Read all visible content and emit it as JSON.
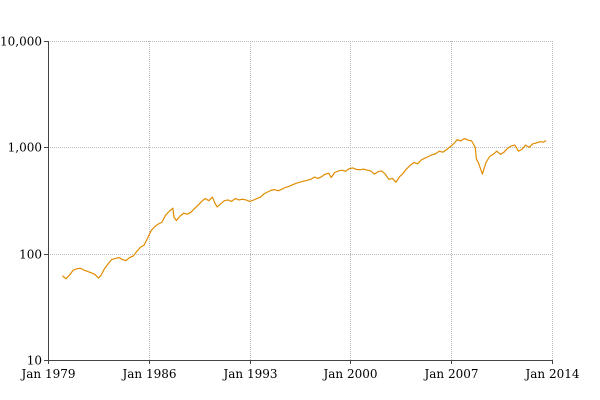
{
  "chart_data": {
    "type": "line",
    "title": "",
    "xlabel": "",
    "ylabel": "",
    "y_scale": "log",
    "ylim": [
      10,
      10000
    ],
    "xlim": [
      "1979-01",
      "2014-01"
    ],
    "grid": true,
    "x_ticks": [
      {
        "date": "1979-01",
        "label": "Jan 1979"
      },
      {
        "date": "1986-01",
        "label": "Jan 1986"
      },
      {
        "date": "1993-01",
        "label": "Jan 1993"
      },
      {
        "date": "2000-01",
        "label": "Jan 2000"
      },
      {
        "date": "2007-01",
        "label": "Jan 2007"
      },
      {
        "date": "2014-01",
        "label": "Jan 2014"
      }
    ],
    "y_ticks": [
      {
        "value": 10,
        "label": "10"
      },
      {
        "value": 100,
        "label": "100"
      },
      {
        "value": 1000,
        "label": "1,000"
      },
      {
        "value": 10000,
        "label": "10,000"
      }
    ],
    "series": [
      {
        "color": "#e08c00",
        "points": [
          [
            "1980-01",
            62
          ],
          [
            "1980-04",
            58
          ],
          [
            "1980-07",
            63
          ],
          [
            "1980-10",
            70
          ],
          [
            "1981-01",
            72
          ],
          [
            "1981-04",
            73
          ],
          [
            "1981-07",
            70
          ],
          [
            "1981-10",
            68
          ],
          [
            "1982-01",
            66
          ],
          [
            "1982-04",
            64
          ],
          [
            "1982-07",
            59
          ],
          [
            "1982-09",
            62
          ],
          [
            "1982-12",
            72
          ],
          [
            "1983-03",
            80
          ],
          [
            "1983-06",
            88
          ],
          [
            "1983-09",
            90
          ],
          [
            "1983-12",
            92
          ],
          [
            "1984-03",
            88
          ],
          [
            "1984-06",
            86
          ],
          [
            "1984-09",
            92
          ],
          [
            "1984-12",
            95
          ],
          [
            "1985-03",
            105
          ],
          [
            "1985-06",
            115
          ],
          [
            "1985-09",
            120
          ],
          [
            "1985-12",
            140
          ],
          [
            "1986-03",
            165
          ],
          [
            "1986-06",
            180
          ],
          [
            "1986-09",
            190
          ],
          [
            "1986-12",
            198
          ],
          [
            "1987-03",
            230
          ],
          [
            "1987-06",
            250
          ],
          [
            "1987-09",
            268
          ],
          [
            "1987-10",
            220
          ],
          [
            "1987-12",
            205
          ],
          [
            "1988-03",
            225
          ],
          [
            "1988-06",
            240
          ],
          [
            "1988-09",
            235
          ],
          [
            "1988-12",
            245
          ],
          [
            "1989-03",
            265
          ],
          [
            "1989-06",
            285
          ],
          [
            "1989-09",
            310
          ],
          [
            "1989-12",
            330
          ],
          [
            "1990-03",
            315
          ],
          [
            "1990-06",
            340
          ],
          [
            "1990-08",
            300
          ],
          [
            "1990-10",
            275
          ],
          [
            "1991-01",
            295
          ],
          [
            "1991-04",
            315
          ],
          [
            "1991-07",
            320
          ],
          [
            "1991-10",
            310
          ],
          [
            "1992-01",
            330
          ],
          [
            "1992-04",
            320
          ],
          [
            "1992-07",
            325
          ],
          [
            "1992-10",
            320
          ],
          [
            "1993-01",
            310
          ],
          [
            "1993-04",
            318
          ],
          [
            "1993-07",
            330
          ],
          [
            "1993-10",
            340
          ],
          [
            "1994-01",
            365
          ],
          [
            "1994-04",
            380
          ],
          [
            "1994-07",
            395
          ],
          [
            "1994-10",
            400
          ],
          [
            "1995-01",
            390
          ],
          [
            "1995-04",
            405
          ],
          [
            "1995-07",
            420
          ],
          [
            "1995-10",
            430
          ],
          [
            "1996-01",
            445
          ],
          [
            "1996-04",
            460
          ],
          [
            "1996-07",
            470
          ],
          [
            "1996-10",
            480
          ],
          [
            "1997-01",
            490
          ],
          [
            "1997-04",
            500
          ],
          [
            "1997-07",
            525
          ],
          [
            "1997-10",
            510
          ],
          [
            "1998-01",
            530
          ],
          [
            "1998-04",
            560
          ],
          [
            "1998-07",
            570
          ],
          [
            "1998-09",
            520
          ],
          [
            "1998-12",
            580
          ],
          [
            "1999-03",
            600
          ],
          [
            "1999-06",
            610
          ],
          [
            "1999-09",
            595
          ],
          [
            "1999-12",
            630
          ],
          [
            "2000-03",
            640
          ],
          [
            "2000-06",
            620
          ],
          [
            "2000-09",
            615
          ],
          [
            "2000-12",
            625
          ],
          [
            "2001-03",
            610
          ],
          [
            "2001-06",
            600
          ],
          [
            "2001-09",
            560
          ],
          [
            "2001-12",
            590
          ],
          [
            "2002-03",
            600
          ],
          [
            "2002-06",
            560
          ],
          [
            "2002-09",
            500
          ],
          [
            "2002-12",
            510
          ],
          [
            "2003-03",
            470
          ],
          [
            "2003-06",
            530
          ],
          [
            "2003-09",
            570
          ],
          [
            "2003-12",
            630
          ],
          [
            "2004-03",
            680
          ],
          [
            "2004-06",
            720
          ],
          [
            "2004-09",
            700
          ],
          [
            "2004-12",
            760
          ],
          [
            "2005-03",
            790
          ],
          [
            "2005-06",
            820
          ],
          [
            "2005-09",
            850
          ],
          [
            "2005-12",
            870
          ],
          [
            "2006-03",
            920
          ],
          [
            "2006-06",
            900
          ],
          [
            "2006-09",
            950
          ],
          [
            "2006-12",
            1010
          ],
          [
            "2007-03",
            1080
          ],
          [
            "2007-06",
            1180
          ],
          [
            "2007-09",
            1150
          ],
          [
            "2007-12",
            1210
          ],
          [
            "2008-03",
            1170
          ],
          [
            "2008-06",
            1150
          ],
          [
            "2008-09",
            1000
          ],
          [
            "2008-10",
            780
          ],
          [
            "2008-12",
            700
          ],
          [
            "2009-03",
            560
          ],
          [
            "2009-06",
            720
          ],
          [
            "2009-09",
            820
          ],
          [
            "2009-12",
            860
          ],
          [
            "2010-03",
            920
          ],
          [
            "2010-06",
            860
          ],
          [
            "2010-09",
            900
          ],
          [
            "2010-12",
            980
          ],
          [
            "2011-03",
            1030
          ],
          [
            "2011-06",
            1050
          ],
          [
            "2011-09",
            920
          ],
          [
            "2011-12",
            960
          ],
          [
            "2012-03",
            1050
          ],
          [
            "2012-06",
            1000
          ],
          [
            "2012-09",
            1080
          ],
          [
            "2012-12",
            1100
          ],
          [
            "2013-03",
            1130
          ],
          [
            "2013-06",
            1120
          ],
          [
            "2013-08",
            1160
          ]
        ]
      }
    ]
  }
}
